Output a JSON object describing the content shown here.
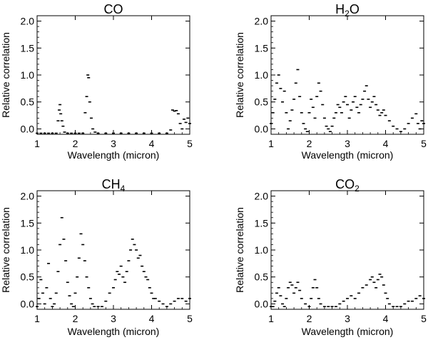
{
  "chart_data": [
    {
      "type": "scatter",
      "title": "CO",
      "xlabel": "Wavelength (micron)",
      "ylabel": "Relative correlation",
      "xlim": [
        1,
        5
      ],
      "ylim": [
        -0.1,
        2.1
      ],
      "xticks": [
        1,
        2,
        3,
        4,
        5
      ],
      "yticks": [
        0.0,
        0.5,
        1.0,
        1.5,
        2.0
      ],
      "ytick_labels": [
        "0.0",
        "0.5",
        "1.0",
        "1.5",
        "2.0"
      ],
      "series": [
        {
          "x": [
            1.0,
            1.1,
            1.2,
            1.3,
            1.4,
            1.5,
            1.55,
            1.58,
            1.6,
            1.62,
            1.65,
            1.68,
            1.72,
            1.8,
            1.9,
            2.0,
            2.1,
            2.2,
            2.26,
            2.3,
            2.33,
            2.35,
            2.38,
            2.42,
            2.46,
            2.52,
            2.6,
            2.8,
            3.0,
            3.2,
            3.4,
            3.6,
            3.8,
            4.0,
            4.2,
            4.4,
            4.5,
            4.55,
            4.6,
            4.65,
            4.7,
            4.75,
            4.8,
            4.85,
            4.9,
            4.95,
            5.0
          ],
          "y": [
            -0.08,
            -0.08,
            -0.08,
            -0.08,
            -0.08,
            -0.08,
            0.15,
            0.35,
            0.45,
            0.28,
            0.15,
            0.05,
            -0.06,
            -0.08,
            -0.08,
            -0.08,
            -0.08,
            -0.08,
            0.3,
            0.6,
            1.0,
            0.95,
            0.5,
            0.2,
            0.0,
            -0.06,
            -0.08,
            -0.08,
            -0.08,
            -0.08,
            -0.08,
            -0.08,
            -0.08,
            -0.08,
            -0.08,
            -0.08,
            -0.02,
            0.35,
            0.33,
            0.34,
            0.28,
            0.1,
            0.0,
            0.18,
            0.12,
            0.2,
            0.1
          ]
        }
      ]
    },
    {
      "type": "scatter",
      "title_main": "H",
      "title_sub": "2",
      "title_tail": "O",
      "xlabel": "Wavelength (micron)",
      "ylabel": "Relative correlation",
      "xlim": [
        1,
        5
      ],
      "ylim": [
        -0.1,
        2.1
      ],
      "xticks": [
        1,
        2,
        3,
        4,
        5
      ],
      "yticks": [
        0.0,
        0.5,
        1.0,
        1.5,
        2.0
      ],
      "ytick_labels": [
        "0.0",
        "0.5",
        "1.0",
        "1.5",
        "2.0"
      ],
      "series": [
        {
          "x": [
            1.0,
            1.05,
            1.1,
            1.15,
            1.2,
            1.25,
            1.3,
            1.35,
            1.4,
            1.45,
            1.5,
            1.55,
            1.6,
            1.65,
            1.7,
            1.75,
            1.8,
            1.85,
            1.9,
            1.95,
            2.0,
            2.05,
            2.1,
            2.15,
            2.2,
            2.25,
            2.3,
            2.35,
            2.4,
            2.45,
            2.5,
            2.55,
            2.6,
            2.65,
            2.7,
            2.75,
            2.8,
            2.85,
            2.9,
            2.95,
            3.0,
            3.05,
            3.1,
            3.15,
            3.2,
            3.25,
            3.3,
            3.35,
            3.4,
            3.45,
            3.5,
            3.55,
            3.6,
            3.65,
            3.7,
            3.75,
            3.8,
            3.85,
            3.9,
            3.95,
            4.0,
            4.1,
            4.2,
            4.3,
            4.4,
            4.5,
            4.6,
            4.7,
            4.8,
            4.85,
            4.9,
            4.95,
            5.0
          ],
          "y": [
            0.1,
            0.3,
            0.55,
            0.85,
            1.0,
            0.75,
            0.5,
            0.7,
            0.3,
            0.0,
            0.15,
            0.35,
            0.55,
            0.85,
            1.1,
            0.6,
            0.3,
            0.1,
            0.0,
            -0.05,
            0.3,
            0.55,
            0.4,
            0.2,
            0.6,
            0.85,
            0.7,
            0.45,
            0.2,
            0.05,
            0.0,
            -0.05,
            0.05,
            0.2,
            0.3,
            0.45,
            0.4,
            0.3,
            0.5,
            0.6,
            0.45,
            0.2,
            0.35,
            0.5,
            0.6,
            0.4,
            0.3,
            0.45,
            0.55,
            0.7,
            0.8,
            0.55,
            0.4,
            0.5,
            0.6,
            0.45,
            0.35,
            0.25,
            0.3,
            0.35,
            0.25,
            0.15,
            0.05,
            0.0,
            -0.05,
            0.0,
            0.1,
            0.2,
            0.28,
            0.1,
            0.0,
            0.15,
            0.1
          ]
        }
      ]
    },
    {
      "type": "scatter",
      "title_main": "CH",
      "title_sub": "4",
      "title_tail": "",
      "xlabel": "Wavelength (micron)",
      "ylabel": "Relative correlation",
      "xlim": [
        1,
        5
      ],
      "ylim": [
        -0.1,
        2.1
      ],
      "xticks": [
        1,
        2,
        3,
        4,
        5
      ],
      "yticks": [
        0.0,
        0.5,
        1.0,
        1.5,
        2.0
      ],
      "ytick_labels": [
        "0.0",
        "0.5",
        "1.0",
        "1.5",
        "2.0"
      ],
      "series": [
        {
          "x": [
            1.0,
            1.05,
            1.1,
            1.15,
            1.2,
            1.25,
            1.3,
            1.35,
            1.4,
            1.45,
            1.5,
            1.55,
            1.6,
            1.65,
            1.7,
            1.75,
            1.8,
            1.85,
            1.9,
            1.95,
            2.0,
            2.05,
            2.1,
            2.15,
            2.2,
            2.25,
            2.3,
            2.35,
            2.4,
            2.45,
            2.5,
            2.6,
            2.7,
            2.8,
            2.9,
            3.0,
            3.05,
            3.1,
            3.15,
            3.2,
            3.25,
            3.3,
            3.35,
            3.4,
            3.45,
            3.5,
            3.55,
            3.6,
            3.65,
            3.7,
            3.75,
            3.8,
            3.85,
            3.9,
            3.95,
            4.0,
            4.05,
            4.1,
            4.2,
            4.3,
            4.4,
            4.5,
            4.6,
            4.7,
            4.8,
            4.9,
            5.0
          ],
          "y": [
            -0.05,
            0.1,
            0.45,
            0.2,
            0.0,
            0.3,
            0.75,
            0.1,
            -0.05,
            0.0,
            0.2,
            0.6,
            1.1,
            1.6,
            1.2,
            0.8,
            0.4,
            0.15,
            0.0,
            -0.05,
            0.2,
            0.5,
            0.85,
            1.3,
            1.1,
            0.8,
            0.5,
            0.3,
            0.1,
            0.0,
            -0.05,
            -0.05,
            -0.05,
            0.05,
            0.2,
            0.3,
            0.45,
            0.6,
            0.55,
            0.7,
            0.5,
            0.4,
            0.6,
            0.8,
            1.0,
            1.2,
            1.1,
            1.0,
            0.85,
            0.9,
            0.7,
            0.6,
            0.5,
            0.45,
            0.3,
            0.2,
            0.1,
            0.1,
            0.05,
            0.0,
            -0.05,
            0.0,
            0.05,
            0.1,
            0.1,
            0.05,
            0.1
          ]
        }
      ]
    },
    {
      "type": "scatter",
      "title_main": "CO",
      "title_sub": "2",
      "title_tail": "",
      "xlabel": "Wavelength (micron)",
      "ylabel": "Relative correlation",
      "xlim": [
        1,
        5
      ],
      "ylim": [
        -0.1,
        2.1
      ],
      "xticks": [
        1,
        2,
        3,
        4,
        5
      ],
      "yticks": [
        0.0,
        0.5,
        1.0,
        1.5,
        2.0
      ],
      "ytick_labels": [
        "0.0",
        "0.5",
        "1.0",
        "1.5",
        "2.0"
      ],
      "series": [
        {
          "x": [
            1.0,
            1.05,
            1.1,
            1.15,
            1.2,
            1.25,
            1.3,
            1.35,
            1.4,
            1.45,
            1.5,
            1.55,
            1.6,
            1.65,
            1.7,
            1.75,
            1.8,
            1.9,
            2.0,
            2.05,
            2.1,
            2.15,
            2.2,
            2.25,
            2.3,
            2.4,
            2.5,
            2.6,
            2.7,
            2.8,
            2.9,
            3.0,
            3.1,
            3.2,
            3.3,
            3.4,
            3.5,
            3.6,
            3.65,
            3.7,
            3.75,
            3.8,
            3.85,
            3.9,
            3.95,
            4.0,
            4.05,
            4.1,
            4.2,
            4.3,
            4.4,
            4.5,
            4.6,
            4.7,
            4.8,
            4.9,
            5.0
          ],
          "y": [
            -0.05,
            -0.05,
            0.05,
            0.2,
            0.3,
            0.15,
            0.0,
            -0.05,
            0.1,
            0.3,
            0.4,
            0.35,
            0.2,
            0.3,
            0.4,
            0.25,
            0.1,
            0.0,
            -0.05,
            0.1,
            0.3,
            0.45,
            0.3,
            0.1,
            0.0,
            -0.05,
            -0.05,
            -0.05,
            -0.05,
            0.0,
            0.05,
            0.1,
            0.15,
            0.1,
            0.2,
            0.3,
            0.35,
            0.45,
            0.5,
            0.4,
            0.3,
            0.45,
            0.55,
            0.5,
            0.35,
            0.2,
            0.1,
            0.0,
            -0.05,
            -0.05,
            -0.05,
            0.0,
            0.05,
            0.05,
            0.1,
            0.15,
            0.1
          ]
        }
      ]
    }
  ]
}
